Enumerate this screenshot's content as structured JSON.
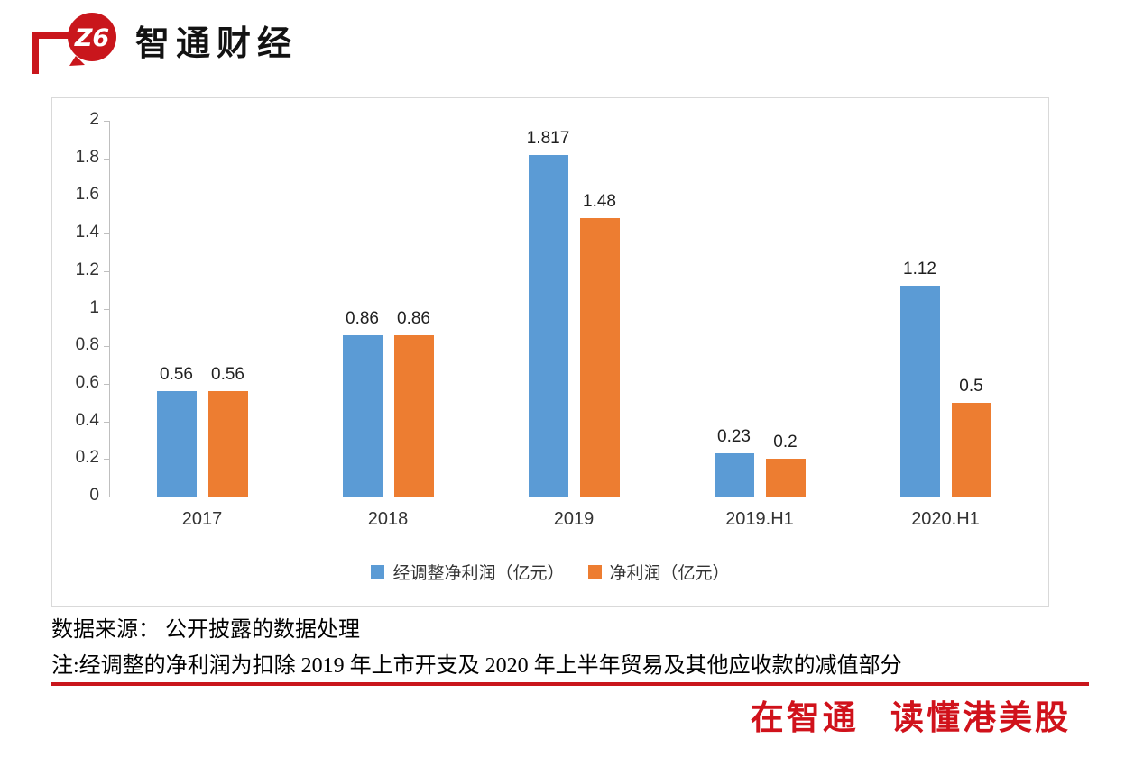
{
  "brand": {
    "logo_monogram": "Z6",
    "logo_text": "智通财经",
    "accent_red": "#C9161C",
    "slogan": "在智通 读懂港美股"
  },
  "footer": {
    "source": "数据来源： 公开披露的数据处理",
    "note": "注:经调整的净利润为扣除 2019 年上市开支及 2020 年上半年贸易及其他应收款的减值部分"
  },
  "chart_data": {
    "type": "bar",
    "title": "",
    "categories": [
      "2017",
      "2018",
      "2019",
      "2019.H1",
      "2020.H1"
    ],
    "series": [
      {
        "name": "经调整净利润（亿元）",
        "color": "#5B9BD5",
        "values": [
          0.56,
          0.86,
          1.817,
          0.23,
          1.12
        ],
        "labels": [
          "0.56",
          "0.86",
          "1.817",
          "0.23",
          "1.12"
        ]
      },
      {
        "name": "净利润（亿元）",
        "color": "#ED7D31",
        "values": [
          0.56,
          0.86,
          1.48,
          0.2,
          0.5
        ],
        "labels": [
          "0.56",
          "0.86",
          "1.48",
          "0.2",
          "0.5"
        ]
      }
    ],
    "ylim": [
      0,
      2
    ],
    "ytick_step": 0.2,
    "yticks": [
      "2",
      "1.8",
      "1.6",
      "1.4",
      "1.2",
      "1",
      "0.8",
      "0.6",
      "0.4",
      "0.2",
      "0"
    ],
    "grid": false,
    "legend_position": "bottom"
  }
}
